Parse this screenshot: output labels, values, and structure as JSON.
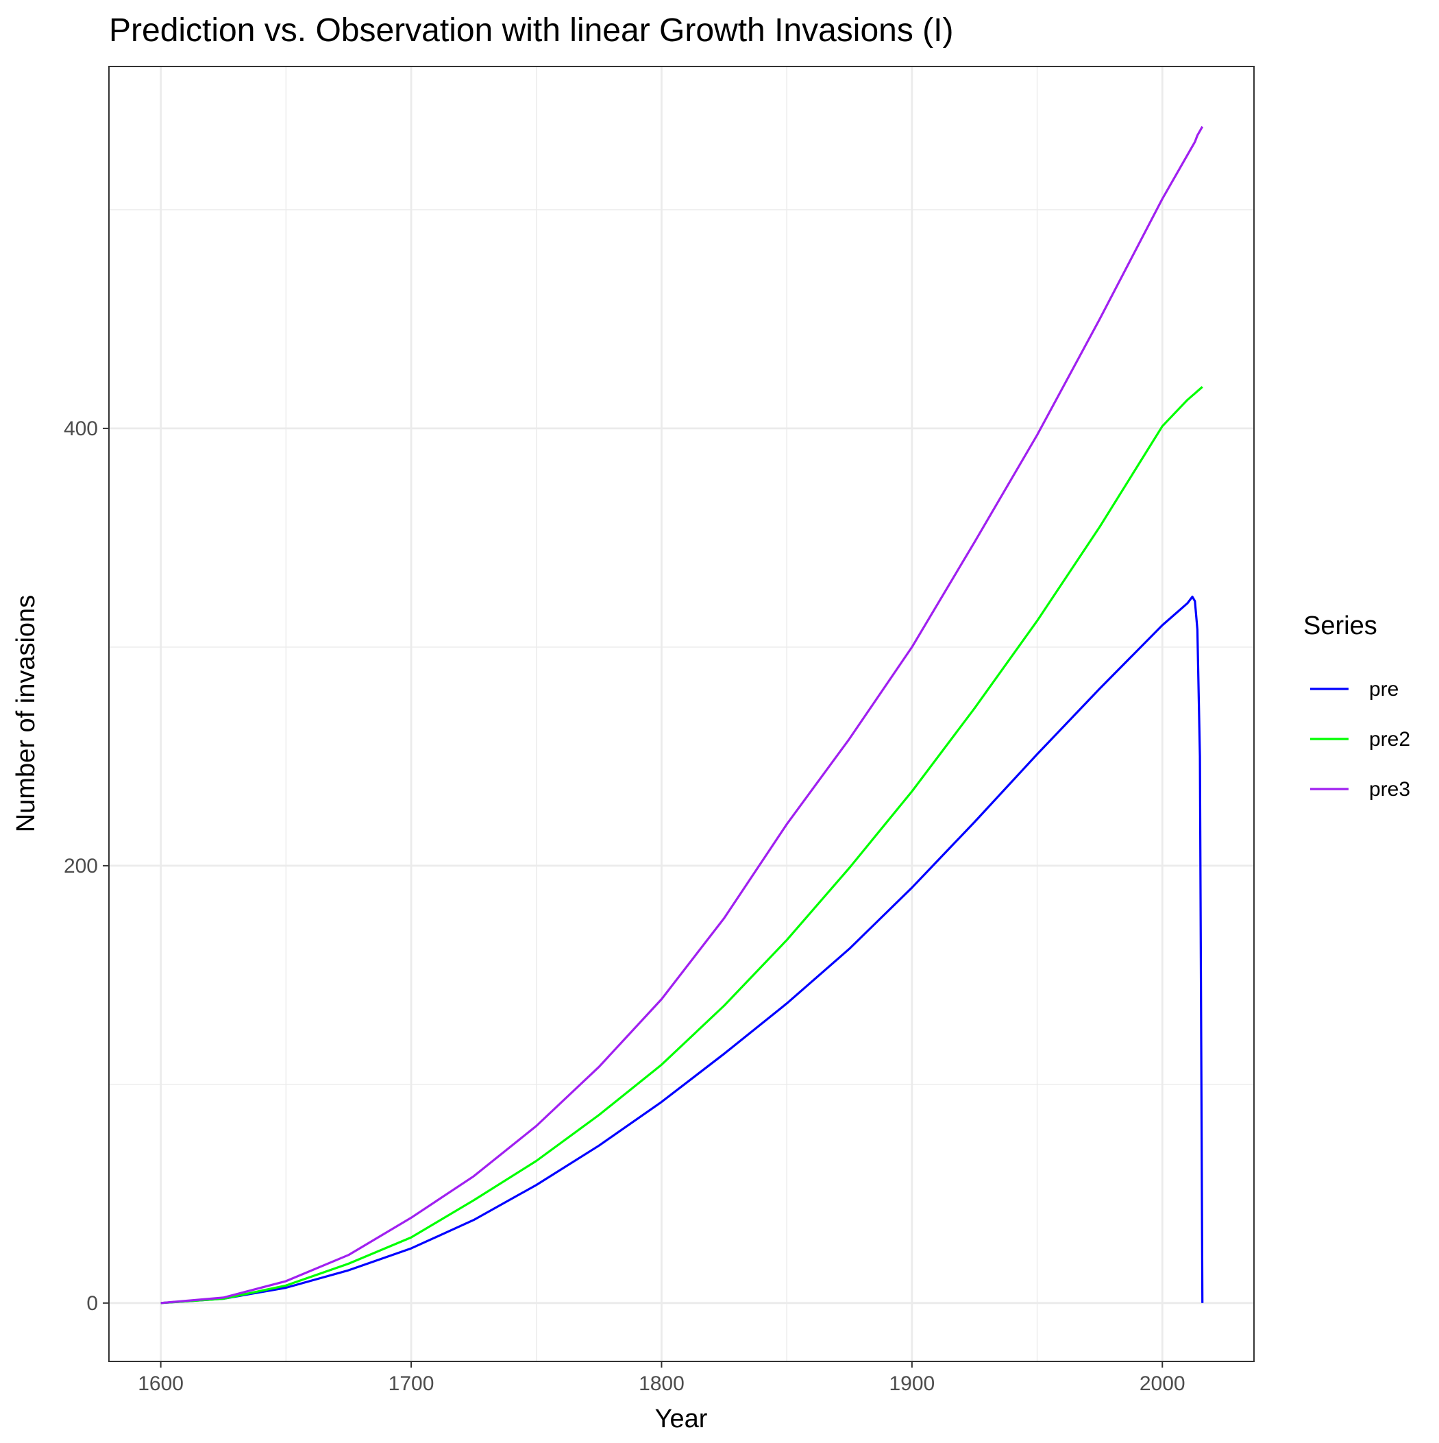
{
  "chart_data": {
    "type": "line",
    "title": "Prediction vs. Observation with linear Growth Invasions (I)",
    "x_label": "Year",
    "y_label": "Number of invasions",
    "legend_title": "Series",
    "legend_position": "right",
    "grid": true,
    "x": [
      1600,
      1625,
      1650,
      1675,
      1700,
      1725,
      1750,
      1775,
      1800,
      1825,
      1850,
      1875,
      1900,
      1925,
      1950,
      1975,
      2000,
      2010,
      2012,
      2013,
      2014,
      2015,
      2016
    ],
    "series": [
      {
        "name": "pre",
        "color": "#0000ff",
        "values": [
          0,
          2,
          7,
          15,
          25,
          38,
          54,
          72,
          92,
          114,
          137,
          162,
          190,
          220,
          251,
          281,
          310,
          320,
          323,
          321,
          308,
          250,
          0
        ]
      },
      {
        "name": "pre2",
        "color": "#00ff00",
        "values": [
          0,
          2,
          8,
          18,
          30,
          47,
          65,
          86,
          109,
          136,
          166,
          199,
          234,
          272,
          312,
          355,
          401,
          413,
          415,
          416,
          417,
          418,
          419
        ]
      },
      {
        "name": "pre3",
        "color": "#a020f0",
        "values": [
          0,
          2.5,
          10,
          22,
          39,
          58,
          81,
          108,
          139,
          176,
          219,
          258,
          300,
          348,
          397,
          450,
          505,
          525,
          529,
          531,
          534,
          536,
          538
        ]
      }
    ],
    "xlim": [
      1579.3,
      2036.6
    ],
    "ylim": [
      -26.7,
      565.5
    ],
    "xticks": [
      1600,
      1700,
      1800,
      1900,
      2000
    ],
    "yticks": [
      0,
      200,
      400
    ]
  }
}
